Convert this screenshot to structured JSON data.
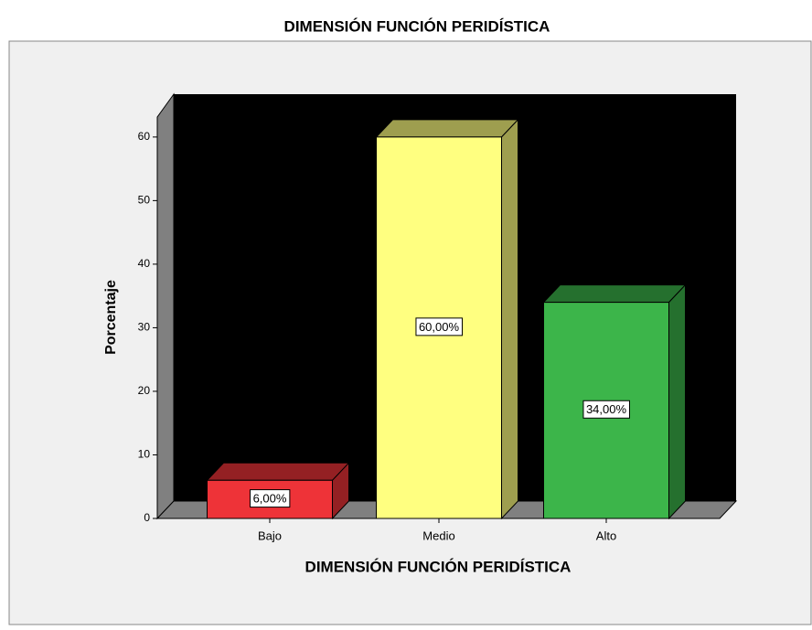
{
  "chart_data": {
    "type": "bar3d",
    "title": "DIMENSIÓN FUNCIÓN PERIDÍSTICA",
    "x_label": "DIMENSIÓN FUNCIÓN PERIDÍSTICA",
    "y_label": "Porcentaje",
    "categories": [
      "Bajo",
      "Medio",
      "Alto"
    ],
    "values": [
      6,
      60,
      34
    ],
    "value_labels": [
      "6,00%",
      "60,00%",
      "34,00%"
    ],
    "colors": [
      "#ee3338",
      "#ffff80",
      "#3cb54a"
    ],
    "ylim": [
      0,
      63
    ],
    "yticks": [
      0,
      10,
      20,
      30,
      40,
      50,
      60
    ]
  }
}
